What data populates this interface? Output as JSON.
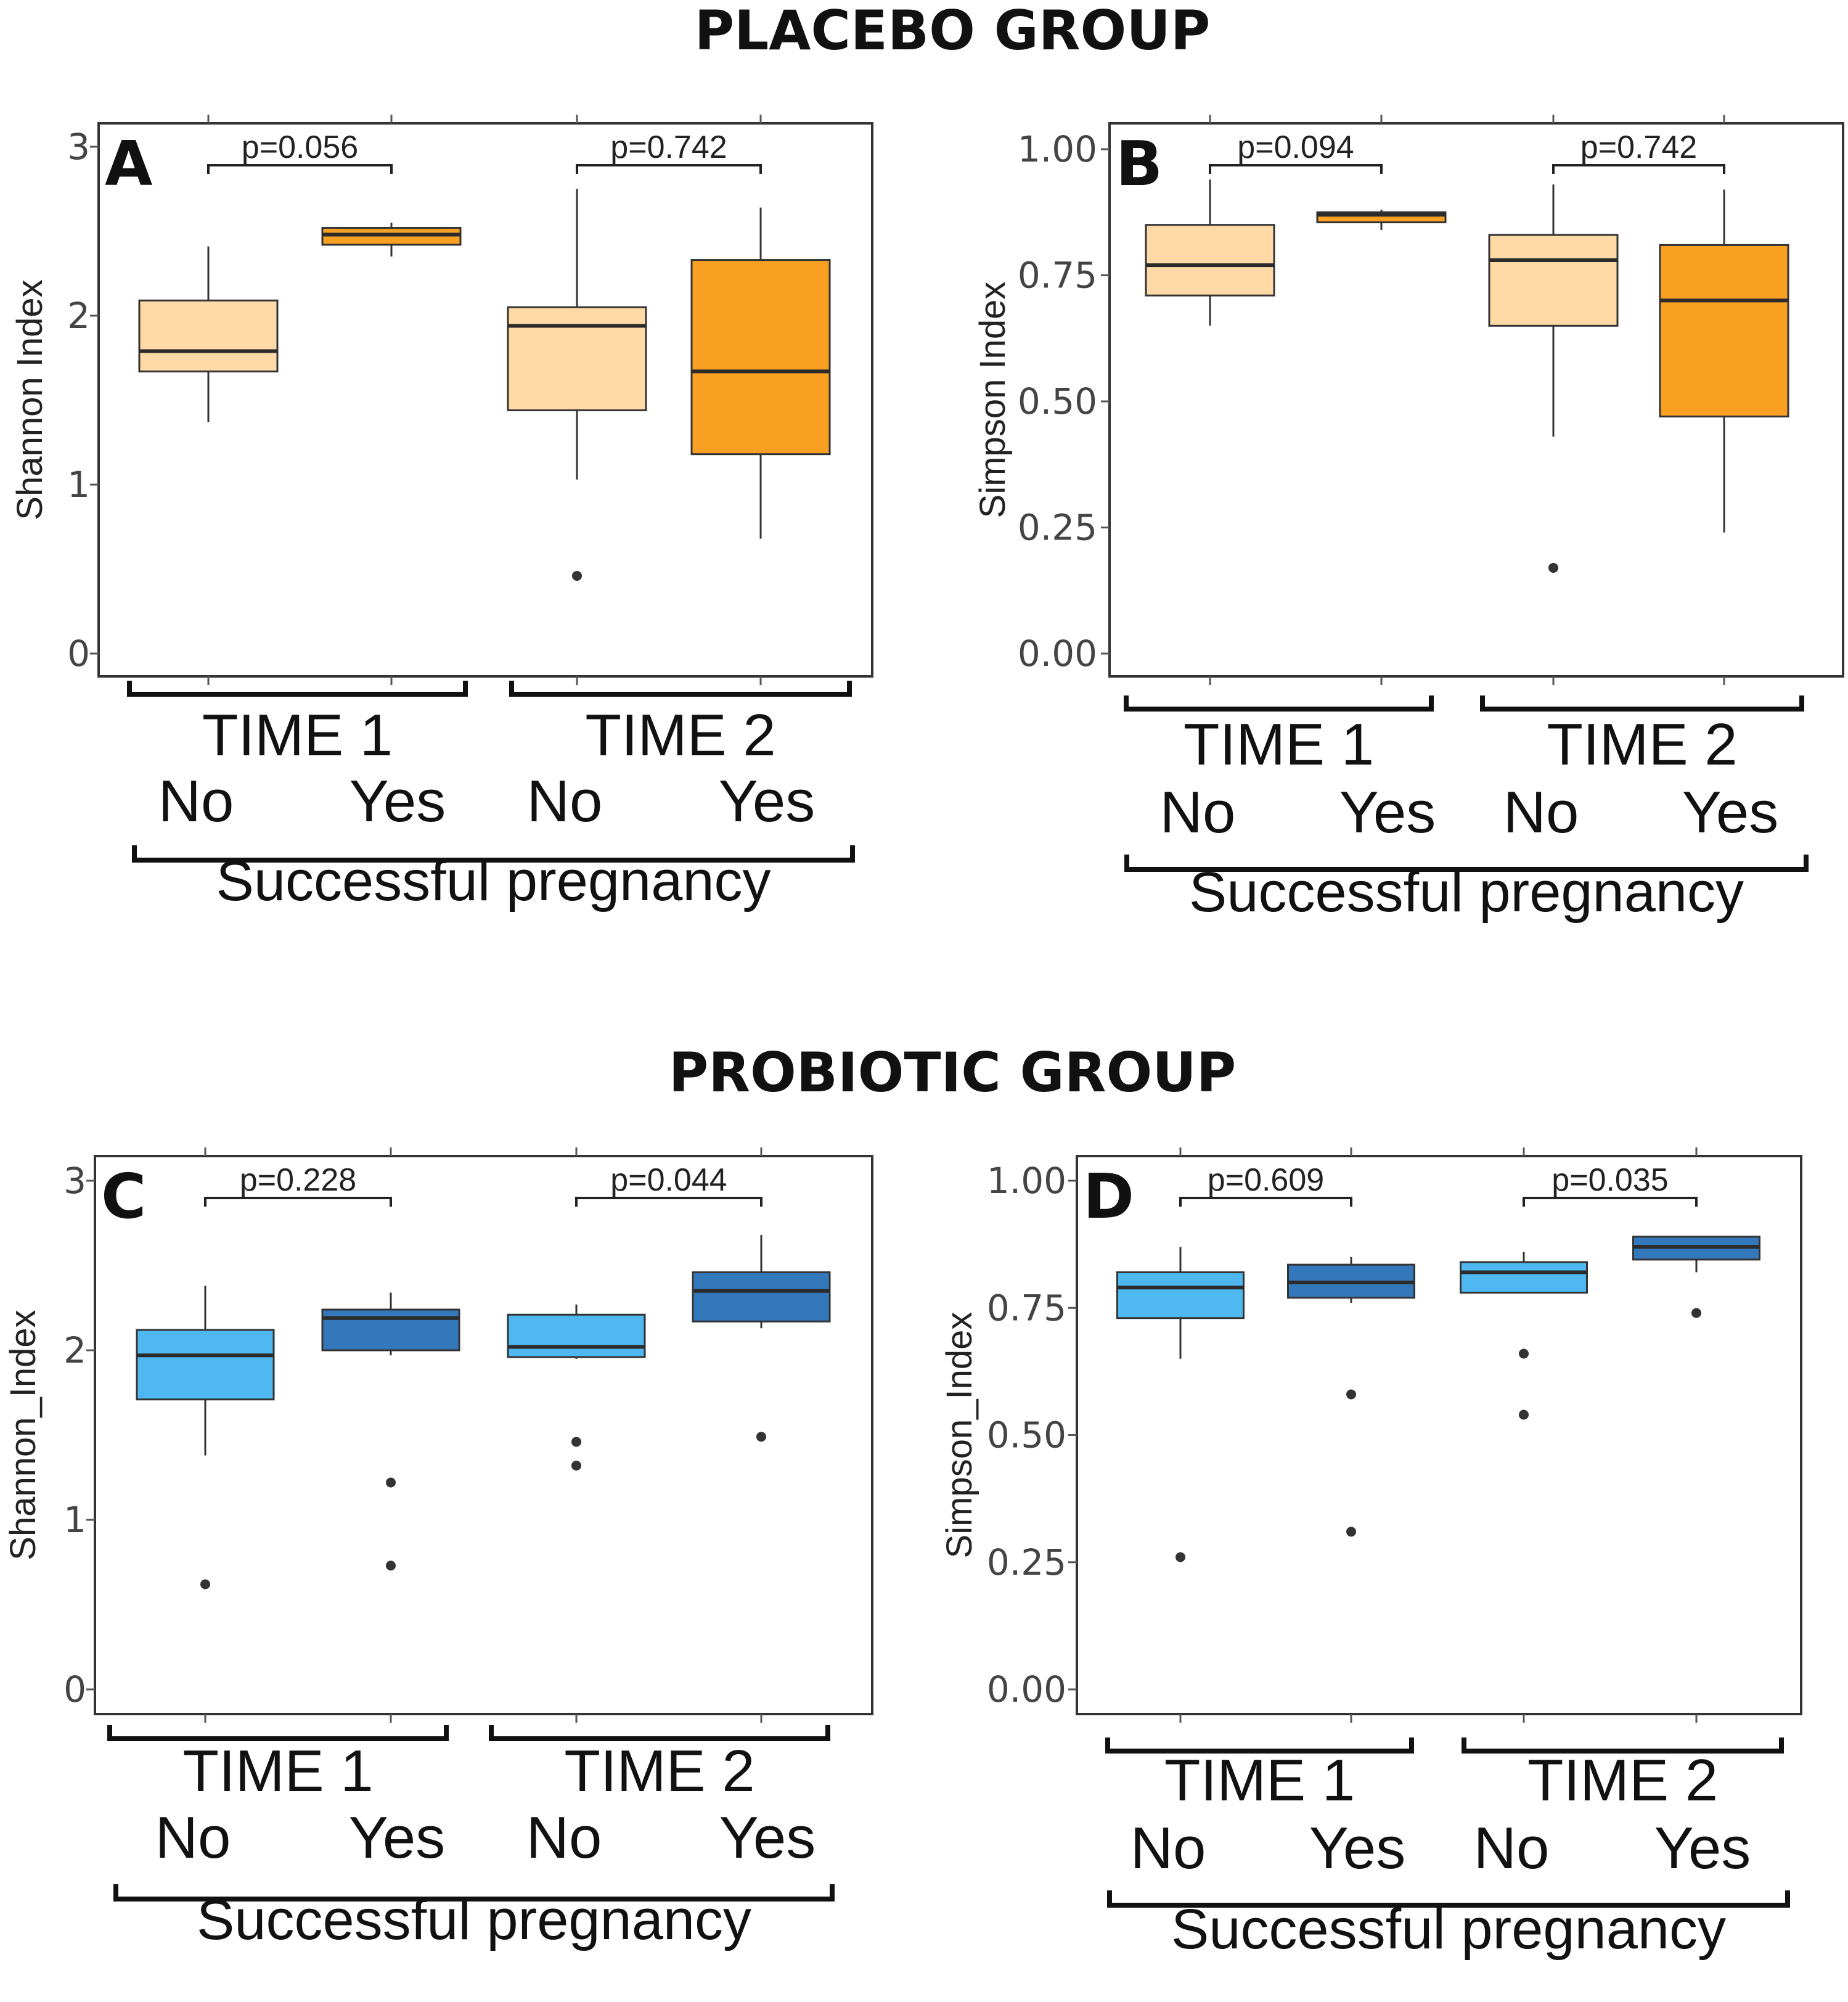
{
  "headers": {
    "placebo": "PLACEBO GROUP",
    "probiotic": "PROBIOTIC GROUP"
  },
  "colors": {
    "placebo_no": "#FFDAA6",
    "placebo_yes": "#F9A023",
    "probiotic_no": "#4FB8F0",
    "probiotic_yes": "#3478BC",
    "median": "#2b2b2b",
    "frame": "#333333",
    "tick": "#555555"
  },
  "chart_data": [
    {
      "id": "A",
      "type": "box",
      "group": "placebo",
      "letter": "A",
      "ylabel": "Shannon  Index",
      "ylim": [
        0,
        3
      ],
      "yticks": [
        0,
        1,
        2,
        3
      ],
      "ytick_labels": [
        "0",
        "1",
        "2",
        "3"
      ],
      "times": [
        "TIME 1",
        "TIME 2"
      ],
      "categories": [
        "No",
        "Yes",
        "No",
        "Yes"
      ],
      "xlabel": "Successful pregnancy",
      "boxes": [
        {
          "label": "No",
          "time": "TIME 1",
          "color": "no",
          "lower_whisker": 1.37,
          "q1": 1.67,
          "median": 1.79,
          "q3": 2.09,
          "upper_whisker": 2.41,
          "outliers": []
        },
        {
          "label": "Yes",
          "time": "TIME 1",
          "color": "yes",
          "lower_whisker": 2.35,
          "q1": 2.42,
          "median": 2.48,
          "q3": 2.52,
          "upper_whisker": 2.55,
          "outliers": []
        },
        {
          "label": "No",
          "time": "TIME 2",
          "color": "no",
          "lower_whisker": 1.03,
          "q1": 1.44,
          "median": 1.94,
          "q3": 2.05,
          "upper_whisker": 2.75,
          "outliers": [
            0.46
          ]
        },
        {
          "label": "Yes",
          "time": "TIME 2",
          "color": "yes",
          "lower_whisker": 0.68,
          "q1": 1.18,
          "median": 1.67,
          "q3": 2.33,
          "upper_whisker": 2.64,
          "outliers": []
        }
      ],
      "pvalues": [
        {
          "text": "p=0.056",
          "from": 0,
          "to": 1
        },
        {
          "text": "p=0.742",
          "from": 2,
          "to": 3
        }
      ]
    },
    {
      "id": "B",
      "type": "box",
      "group": "placebo",
      "letter": "B",
      "ylabel": "Simpson  Index",
      "ylim": [
        0,
        1
      ],
      "yticks": [
        0,
        0.25,
        0.5,
        0.75,
        1
      ],
      "ytick_labels": [
        "0.00",
        "0.25",
        "0.50",
        "0.75",
        "1.00"
      ],
      "times": [
        "TIME 1",
        "TIME 2"
      ],
      "categories": [
        "No",
        "Yes",
        "No",
        "Yes"
      ],
      "xlabel": "Successful pregnancy",
      "boxes": [
        {
          "label": "No",
          "time": "TIME 1",
          "color": "no",
          "lower_whisker": 0.65,
          "q1": 0.71,
          "median": 0.77,
          "q3": 0.85,
          "upper_whisker": 0.94,
          "outliers": []
        },
        {
          "label": "Yes",
          "time": "TIME 1",
          "color": "yes",
          "lower_whisker": 0.84,
          "q1": 0.855,
          "median": 0.87,
          "q3": 0.875,
          "upper_whisker": 0.88,
          "outliers": []
        },
        {
          "label": "No",
          "time": "TIME 2",
          "color": "no",
          "lower_whisker": 0.43,
          "q1": 0.65,
          "median": 0.78,
          "q3": 0.83,
          "upper_whisker": 0.93,
          "outliers": [
            0.17
          ]
        },
        {
          "label": "Yes",
          "time": "TIME 2",
          "color": "yes",
          "lower_whisker": 0.24,
          "q1": 0.47,
          "median": 0.7,
          "q3": 0.81,
          "upper_whisker": 0.92,
          "outliers": []
        }
      ],
      "pvalues": [
        {
          "text": "p=0.094",
          "from": 0,
          "to": 1
        },
        {
          "text": "p=0.742",
          "from": 2,
          "to": 3
        }
      ]
    },
    {
      "id": "C",
      "type": "box",
      "group": "probiotic",
      "letter": "C",
      "ylabel": "Shannon_Index",
      "ylim": [
        0,
        3
      ],
      "yticks": [
        0,
        1,
        2,
        3
      ],
      "ytick_labels": [
        "0",
        "1",
        "2",
        "3"
      ],
      "times": [
        "TIME 1",
        "TIME 2"
      ],
      "categories": [
        "No",
        "Yes",
        "No",
        "Yes"
      ],
      "xlabel": "Successful pregnancy",
      "boxes": [
        {
          "label": "No",
          "time": "TIME 1",
          "color": "no",
          "lower_whisker": 1.38,
          "q1": 1.71,
          "median": 1.97,
          "q3": 2.12,
          "upper_whisker": 2.38,
          "outliers": [
            0.62
          ]
        },
        {
          "label": "Yes",
          "time": "TIME 1",
          "color": "yes",
          "lower_whisker": 1.97,
          "q1": 2.0,
          "median": 2.19,
          "q3": 2.24,
          "upper_whisker": 2.34,
          "outliers": [
            1.22,
            0.73
          ]
        },
        {
          "label": "No",
          "time": "TIME 2",
          "color": "no",
          "lower_whisker": 1.95,
          "q1": 1.96,
          "median": 2.02,
          "q3": 2.21,
          "upper_whisker": 2.27,
          "outliers": [
            1.46,
            1.32
          ]
        },
        {
          "label": "Yes",
          "time": "TIME 2",
          "color": "yes",
          "lower_whisker": 2.13,
          "q1": 2.17,
          "median": 2.35,
          "q3": 2.46,
          "upper_whisker": 2.68,
          "outliers": [
            1.49
          ]
        }
      ],
      "pvalues": [
        {
          "text": "p=0.228",
          "from": 0,
          "to": 1
        },
        {
          "text": "p=0.044",
          "from": 2,
          "to": 3
        }
      ]
    },
    {
      "id": "D",
      "type": "box",
      "group": "probiotic",
      "letter": "D",
      "ylabel": "Simpson_Index",
      "ylim": [
        0,
        1
      ],
      "yticks": [
        0,
        0.25,
        0.5,
        0.75,
        1
      ],
      "ytick_labels": [
        "0.00",
        "0.25",
        "0.50",
        "0.75",
        "1.00"
      ],
      "times": [
        "TIME 1",
        "TIME 2"
      ],
      "categories": [
        "No",
        "Yes",
        "No",
        "Yes"
      ],
      "xlabel": "Successful pregnancy",
      "boxes": [
        {
          "label": "No",
          "time": "TIME 1",
          "color": "no",
          "lower_whisker": 0.65,
          "q1": 0.73,
          "median": 0.79,
          "q3": 0.82,
          "upper_whisker": 0.87,
          "outliers": [
            0.26
          ]
        },
        {
          "label": "Yes",
          "time": "TIME 1",
          "color": "yes",
          "lower_whisker": 0.76,
          "q1": 0.77,
          "median": 0.8,
          "q3": 0.835,
          "upper_whisker": 0.85,
          "outliers": [
            0.58,
            0.31
          ]
        },
        {
          "label": "No",
          "time": "TIME 2",
          "color": "no",
          "lower_whisker": 0.78,
          "q1": 0.78,
          "median": 0.82,
          "q3": 0.84,
          "upper_whisker": 0.86,
          "outliers": [
            0.66,
            0.54
          ]
        },
        {
          "label": "Yes",
          "time": "TIME 2",
          "color": "yes",
          "lower_whisker": 0.82,
          "q1": 0.845,
          "median": 0.87,
          "q3": 0.89,
          "upper_whisker": 0.89,
          "outliers": [
            0.74
          ]
        }
      ],
      "pvalues": [
        {
          "text": "p=0.609",
          "from": 0,
          "to": 1
        },
        {
          "text": "p=0.035",
          "from": 2,
          "to": 3
        }
      ]
    }
  ]
}
